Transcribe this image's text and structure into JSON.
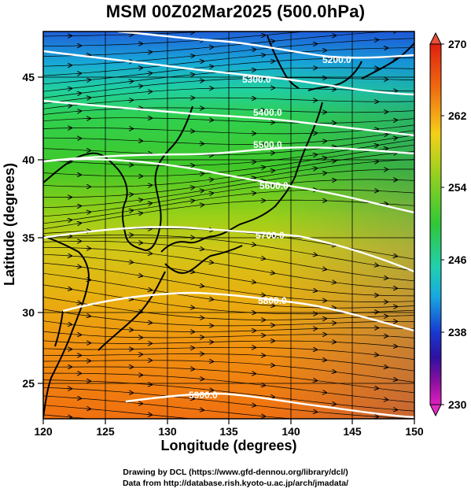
{
  "title": "MSM 00Z02Mar2025 (500.0hPa)",
  "axes": {
    "xlabel": "Longitude (degrees)",
    "ylabel": "Latitude  (degrees)",
    "xticks": [
      "120",
      "125",
      "130",
      "135",
      "140",
      "145",
      "150"
    ],
    "yticks": [
      "25",
      "30",
      "35",
      "40",
      "45"
    ]
  },
  "colorbar": {
    "ticks": [
      "270",
      "262",
      "254",
      "246",
      "238",
      "230"
    ]
  },
  "contour_labels": [
    {
      "id": "c1",
      "text": "5200.0"
    },
    {
      "id": "c2",
      "text": "5300.0"
    },
    {
      "id": "c3",
      "text": "5400.0"
    },
    {
      "id": "c4",
      "text": "5500.0"
    },
    {
      "id": "c5",
      "text": "5600.0"
    },
    {
      "id": "c6",
      "text": "5700.0"
    },
    {
      "id": "c7",
      "text": "5800.0"
    },
    {
      "id": "c8",
      "text": "5900.0"
    }
  ],
  "credits": {
    "line1": "Drawing by DCL (https://www.gfd-dennou.org/library/dcl/)",
    "line2": "Data from http://database.rish.kyoto-u.ac.jp/arch/jmadata/"
  },
  "chart_data": {
    "type": "heatmap",
    "title": "MSM 00Z02Mar2025 (500.0hPa)",
    "xlabel": "Longitude (degrees)",
    "ylabel": "Latitude  (degrees)",
    "xlim": [
      120,
      150
    ],
    "ylim": [
      22.4,
      47.6
    ],
    "color_range": [
      230,
      270
    ],
    "contour_levels": [
      5200,
      5300,
      5400,
      5500,
      5600,
      5700,
      5800,
      5900
    ],
    "overlay": "wind streamlines with arrows (predominantly westerly flow)"
  }
}
